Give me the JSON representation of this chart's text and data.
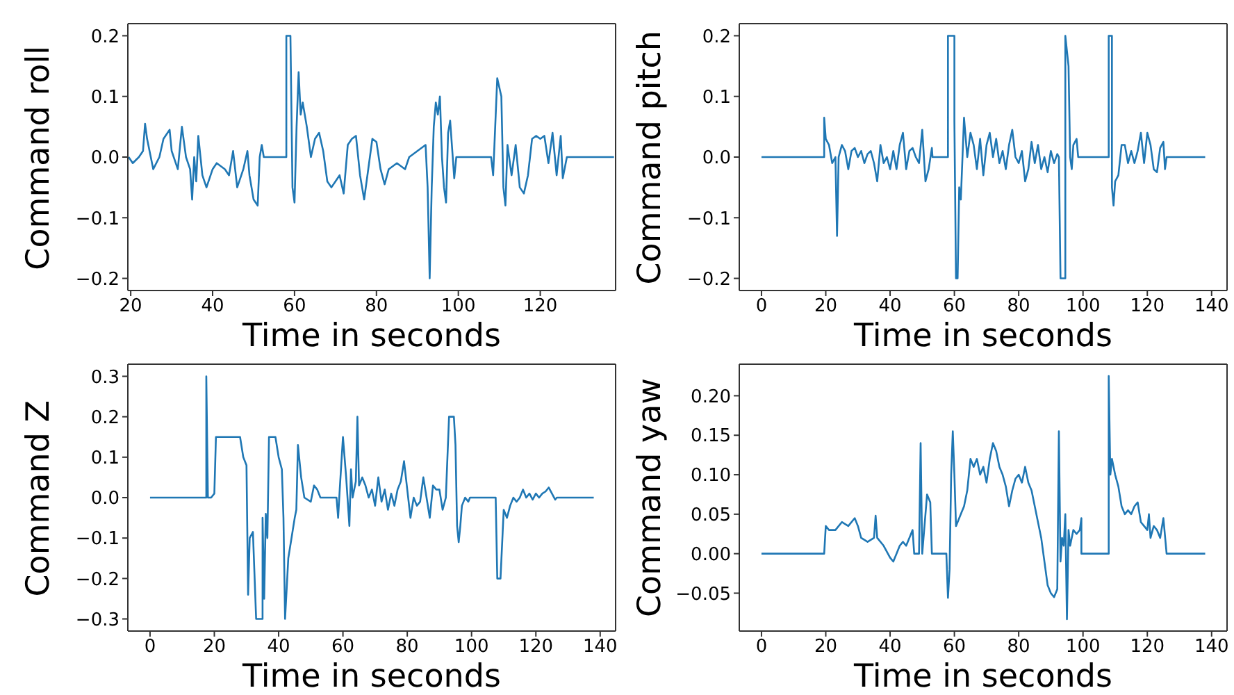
{
  "chart_data": [
    {
      "type": "line",
      "ylabel": "Command roll",
      "xlabel": "Time in seconds",
      "xlim": [
        19.3,
        138.4
      ],
      "ylim": [
        -0.22,
        0.22
      ],
      "xticks": [
        20,
        40,
        60,
        80,
        100,
        120
      ],
      "yticks": [
        {
          "value": -0.2,
          "label": "−0.2"
        },
        {
          "value": -0.1,
          "label": "−0.1"
        },
        {
          "value": 0,
          "label": "0.0"
        },
        {
          "value": 0.1,
          "label": "0.1"
        },
        {
          "value": 0.2,
          "label": "0.2"
        }
      ],
      "series": [
        {
          "color": "#1f77b4",
          "x": [
            19.5,
            20.5,
            22,
            23,
            23.5,
            24,
            25.5,
            27,
            28,
            29.5,
            30,
            31.5,
            32.5,
            33.5,
            34.5,
            35,
            35.5,
            36,
            36.5,
            37.5,
            38.5,
            40,
            41,
            43,
            44,
            45,
            46,
            47.5,
            48.5,
            49,
            50,
            51,
            51.5,
            52,
            52.5,
            58,
            58,
            59,
            59.5,
            60,
            60.5,
            61,
            61.5,
            62,
            63,
            64,
            65,
            66,
            67,
            68,
            69,
            70,
            71,
            72,
            73,
            74,
            75,
            76,
            77,
            78,
            79,
            80,
            81,
            82,
            83,
            85,
            87,
            88,
            90,
            92,
            92.5,
            93,
            93.5,
            94,
            94.5,
            95,
            95.5,
            96,
            96.5,
            97,
            97.5,
            98,
            99,
            99.5,
            108,
            108.5,
            109,
            109.5,
            110.5,
            111,
            111.5,
            112,
            113,
            114,
            115,
            116,
            117,
            118,
            119,
            120,
            121,
            122,
            123,
            124,
            125,
            125.5,
            126.5,
            138
          ],
          "values": [
            0,
            -0.01,
            0,
            0.01,
            0.055,
            0.03,
            -0.02,
            0,
            0.03,
            0.045,
            0.01,
            -0.02,
            0.05,
            0,
            -0.02,
            -0.07,
            0,
            -0.04,
            0.035,
            -0.03,
            -0.05,
            -0.02,
            -0.01,
            -0.02,
            -0.03,
            0.01,
            -0.05,
            -0.02,
            0.01,
            -0.03,
            -0.07,
            -0.08,
            0,
            0.02,
            0,
            0,
            0.2,
            0.2,
            -0.05,
            -0.075,
            0.05,
            0.14,
            0.07,
            0.09,
            0.05,
            0,
            0.03,
            0.04,
            0.01,
            -0.04,
            -0.05,
            -0.04,
            -0.03,
            -0.06,
            0.02,
            0.03,
            0.035,
            -0.03,
            -0.07,
            -0.02,
            0.03,
            0.025,
            -0.02,
            -0.045,
            -0.02,
            -0.01,
            -0.02,
            0,
            0.01,
            0.02,
            -0.05,
            -0.2,
            -0.05,
            0.05,
            0.09,
            0.07,
            0.1,
            0,
            -0.05,
            -0.075,
            0.04,
            0.06,
            -0.035,
            0,
            0,
            -0.03,
            0.05,
            0.13,
            0.1,
            -0.05,
            -0.08,
            0.02,
            -0.03,
            0.02,
            -0.05,
            -0.06,
            -0.03,
            0.03,
            0.035,
            0.03,
            0.035,
            -0.01,
            0.04,
            -0.03,
            0.035,
            -0.035,
            0,
            0
          ]
        }
      ]
    },
    {
      "type": "line",
      "ylabel": "Command pitch",
      "xlabel": "Time in seconds",
      "xlim": [
        -6.9,
        144.8
      ],
      "ylim": [
        -0.22,
        0.22
      ],
      "xticks": [
        0,
        20,
        40,
        60,
        80,
        100,
        120,
        140
      ],
      "yticks": [
        {
          "value": -0.2,
          "label": "−0.2"
        },
        {
          "value": -0.1,
          "label": "−0.1"
        },
        {
          "value": 0,
          "label": "0.0"
        },
        {
          "value": 0.1,
          "label": "0.1"
        },
        {
          "value": 0.2,
          "label": "0.2"
        }
      ],
      "series": [
        {
          "color": "#1f77b4",
          "x": [
            0,
            19.5,
            19.5,
            20,
            21,
            22,
            23,
            23.5,
            24,
            25,
            26,
            27,
            28,
            29,
            30,
            31,
            32,
            33,
            34,
            35,
            36,
            37,
            38,
            39,
            40,
            41,
            42,
            43,
            44,
            45,
            46,
            47,
            48,
            49,
            50,
            51,
            52,
            53,
            53.2,
            58,
            58,
            60,
            60,
            60.5,
            61,
            61.5,
            62,
            63,
            64,
            65,
            66,
            67,
            68,
            69,
            70,
            71,
            72,
            73,
            74,
            75,
            76,
            77,
            78,
            79,
            80,
            81,
            82,
            83,
            84,
            85,
            86,
            87,
            88,
            89,
            90,
            91,
            92,
            92.5,
            93,
            94.5,
            94.5,
            95.5,
            96,
            96.5,
            97,
            98,
            98.5,
            108,
            108,
            109,
            109,
            109.5,
            110,
            111,
            112,
            113,
            114,
            115,
            116,
            117,
            118,
            119,
            120,
            121,
            122,
            123,
            124,
            125,
            125.5,
            126,
            138
          ],
          "values": [
            0,
            0,
            0.065,
            0.03,
            0.02,
            -0.01,
            0,
            -0.13,
            0,
            0.02,
            0.01,
            -0.02,
            0.01,
            0.015,
            0,
            0.01,
            -0.01,
            0.005,
            0.01,
            -0.01,
            -0.04,
            0.02,
            -0.01,
            0,
            -0.02,
            0.01,
            -0.02,
            0.02,
            0.04,
            -0.02,
            0.01,
            0.015,
            0,
            -0.01,
            0.045,
            -0.04,
            -0.02,
            0.015,
            0,
            0,
            0.2,
            0.2,
            0.06,
            -0.2,
            -0.2,
            -0.05,
            -0.07,
            0.065,
            0,
            0.04,
            0.02,
            -0.02,
            0.03,
            -0.03,
            0.02,
            0.04,
            0,
            0.03,
            -0.01,
            0.01,
            -0.02,
            0.02,
            0.045,
            0,
            -0.01,
            0.01,
            -0.04,
            -0.02,
            0.025,
            -0.01,
            0.02,
            -0.02,
            0,
            -0.025,
            0.01,
            -0.01,
            0.005,
            0,
            -0.2,
            -0.2,
            0.2,
            0.15,
            0,
            -0.02,
            0.02,
            0.03,
            0,
            0,
            0.2,
            0.2,
            -0.05,
            -0.08,
            -0.04,
            -0.03,
            0.02,
            0.02,
            -0.01,
            0.01,
            -0.01,
            0.01,
            0.04,
            -0.01,
            0.04,
            0.02,
            -0.02,
            -0.025,
            0.015,
            0.025,
            -0.02,
            0,
            0
          ]
        }
      ]
    },
    {
      "type": "line",
      "ylabel": "Command Z",
      "xlabel": "Time in seconds",
      "xlim": [
        -6.9,
        144.8
      ],
      "ylim": [
        -0.33,
        0.33
      ],
      "xticks": [
        0,
        20,
        40,
        60,
        80,
        100,
        120,
        140
      ],
      "yticks": [
        {
          "value": -0.3,
          "label": "−0.3"
        },
        {
          "value": -0.2,
          "label": "−0.2"
        },
        {
          "value": -0.1,
          "label": "−0.1"
        },
        {
          "value": 0,
          "label": "0.0"
        },
        {
          "value": 0.1,
          "label": "0.1"
        },
        {
          "value": 0.2,
          "label": "0.2"
        },
        {
          "value": 0.3,
          "label": "0.3"
        }
      ],
      "series": [
        {
          "color": "#1f77b4",
          "x": [
            0,
            17.5,
            17.5,
            18,
            19,
            20,
            20.5,
            28,
            29,
            30,
            30.5,
            31,
            32,
            33,
            35,
            35,
            35.5,
            36,
            36.5,
            37,
            39,
            40,
            41,
            41.5,
            42,
            43,
            44,
            45,
            45.5,
            46,
            47,
            48,
            50,
            51,
            52,
            53,
            58,
            58.5,
            59,
            60,
            61,
            62,
            62.5,
            63,
            64,
            64.5,
            65,
            66,
            67,
            68,
            69,
            70,
            71,
            72,
            73,
            74,
            75,
            76,
            77,
            78,
            79,
            80,
            81,
            82,
            83,
            84,
            85,
            86,
            87,
            88,
            89,
            90,
            91,
            92,
            93,
            94.5,
            95,
            95.5,
            96,
            96.5,
            97,
            98,
            99,
            99.5,
            107.5,
            108,
            109,
            110,
            111,
            112,
            113,
            114,
            115,
            116,
            117,
            118,
            119,
            120,
            121,
            122,
            123,
            124,
            125,
            126,
            126.5,
            138
          ],
          "values": [
            0,
            0,
            0.3,
            0,
            0,
            0.01,
            0.15,
            0.15,
            0.1,
            0.08,
            -0.24,
            -0.1,
            -0.085,
            -0.3,
            -0.3,
            -0.05,
            -0.25,
            -0.04,
            -0.1,
            0.15,
            0.15,
            0.1,
            0.07,
            -0.05,
            -0.3,
            -0.15,
            -0.1,
            -0.05,
            -0.03,
            0.13,
            0.05,
            0,
            -0.01,
            0.03,
            0.02,
            0,
            0,
            -0.05,
            0.02,
            0.15,
            0.05,
            -0.07,
            0.07,
            0,
            0.04,
            0.2,
            0.03,
            0.05,
            0.03,
            0,
            0.02,
            -0.02,
            0.05,
            -0.01,
            0.02,
            -0.03,
            0.01,
            -0.02,
            0.02,
            0.04,
            0.09,
            0.02,
            -0.05,
            0,
            -0.02,
            -0.01,
            0.05,
            0,
            -0.05,
            0.03,
            0.02,
            0.02,
            -0.03,
            0,
            0.2,
            0.2,
            0.13,
            -0.07,
            -0.11,
            -0.07,
            -0.02,
            0,
            -0.01,
            0,
            0,
            -0.2,
            -0.2,
            -0.03,
            -0.05,
            -0.02,
            0,
            -0.01,
            0,
            0.02,
            0,
            0.01,
            -0.005,
            0.01,
            0,
            0.01,
            0.015,
            0.025,
            0.01,
            -0.005,
            0,
            0
          ]
        }
      ]
    },
    {
      "type": "line",
      "ylabel": "Command yaw",
      "xlabel": "Time in seconds",
      "xlim": [
        -6.9,
        144.8
      ],
      "ylim": [
        -0.098,
        0.24
      ],
      "xticks": [
        0,
        20,
        40,
        60,
        80,
        100,
        120,
        140
      ],
      "yticks": [
        {
          "value": -0.05,
          "label": "−0.05"
        },
        {
          "value": 0,
          "label": "0.00"
        },
        {
          "value": 0.05,
          "label": "0.05"
        },
        {
          "value": 0.1,
          "label": "0.10"
        },
        {
          "value": 0.15,
          "label": "0.15"
        },
        {
          "value": 0.2,
          "label": "0.20"
        }
      ],
      "series": [
        {
          "color": "#1f77b4",
          "x": [
            0,
            19.5,
            20,
            21,
            23,
            25,
            27,
            29,
            30,
            31,
            33,
            35,
            35.5,
            36,
            38,
            40,
            41,
            42,
            43,
            44,
            45,
            46,
            47,
            47.5,
            49,
            49.5,
            50,
            51,
            51.5,
            52.5,
            53,
            57.5,
            58,
            58.5,
            59,
            59.5,
            60,
            60.5,
            61,
            62,
            63,
            64,
            65,
            66,
            67,
            68,
            69,
            70,
            71,
            72,
            73,
            74,
            75,
            76,
            77,
            78,
            79,
            80,
            81,
            82,
            83,
            84,
            85,
            86,
            87,
            88,
            89,
            90,
            91,
            92,
            92.5,
            93,
            93.5,
            94,
            94.5,
            95,
            95.5,
            96,
            97,
            98,
            99,
            99.5,
            99.5,
            108,
            108,
            108.5,
            109,
            110,
            111,
            112,
            113,
            114,
            115,
            116,
            117,
            118,
            119,
            120,
            120.5,
            121,
            122,
            123,
            124,
            125,
            126,
            138
          ],
          "values": [
            0,
            0,
            0.035,
            0.03,
            0.03,
            0.04,
            0.035,
            0.045,
            0.035,
            0.02,
            0.015,
            0.02,
            0.048,
            0.02,
            0.01,
            -0.005,
            -0.01,
            0,
            0.01,
            0.015,
            0.01,
            0.02,
            0.03,
            0,
            0,
            0.14,
            0,
            0.05,
            0.075,
            0.065,
            0,
            0,
            -0.056,
            -0.02,
            0.1,
            0.155,
            0.1,
            0.035,
            0.04,
            0.05,
            0.06,
            0.08,
            0.12,
            0.11,
            0.12,
            0.1,
            0.11,
            0.09,
            0.12,
            0.14,
            0.13,
            0.11,
            0.1,
            0.085,
            0.06,
            0.08,
            0.095,
            0.1,
            0.09,
            0.11,
            0.09,
            0.08,
            0.06,
            0.04,
            0.02,
            -0.01,
            -0.04,
            -0.05,
            -0.055,
            -0.045,
            0.155,
            -0.01,
            0.02,
            0.01,
            0.05,
            -0.083,
            0.03,
            0.01,
            0.03,
            0.025,
            0.03,
            0.045,
            0,
            0,
            0.225,
            0.1,
            0.12,
            0.1,
            0.085,
            0.06,
            0.05,
            0.055,
            0.05,
            0.06,
            0.065,
            0.04,
            0.035,
            0.03,
            0.05,
            0.02,
            0.035,
            0.03,
            0.02,
            0.045,
            0,
            0
          ]
        }
      ]
    }
  ]
}
